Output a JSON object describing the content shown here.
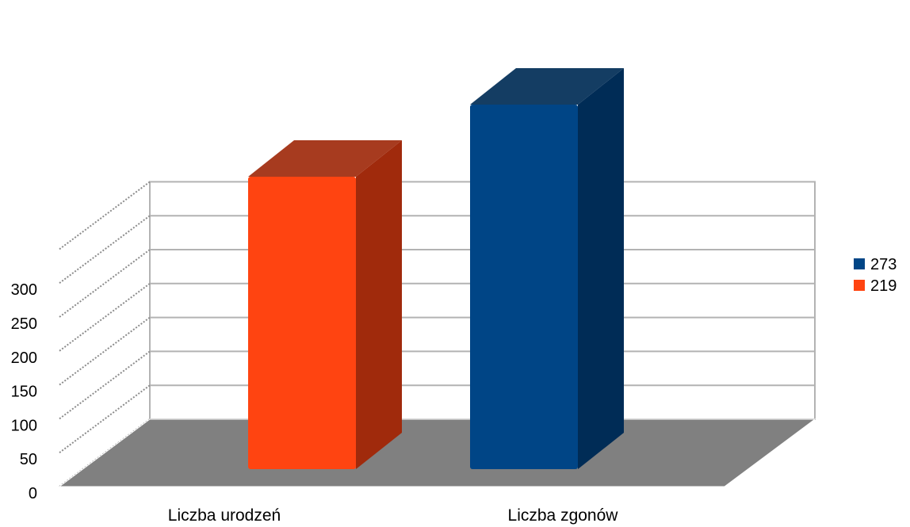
{
  "chart_data": {
    "type": "bar",
    "style": "3d",
    "categories": [
      "Liczba urodzeń",
      "Liczba zgonów"
    ],
    "values": [
      219,
      273
    ],
    "bar_colors": [
      "#ff4411",
      "#004586"
    ],
    "bar_side_colors": [
      "#a02a0c",
      "#002c56"
    ],
    "legend": [
      {
        "label": "273",
        "color": "#004586"
      },
      {
        "label": "219",
        "color": "#ff4411"
      }
    ],
    "legend_position": "right",
    "ylim": [
      0,
      300
    ],
    "yticks": [
      "0",
      "50",
      "100",
      "150",
      "200",
      "250",
      "300"
    ],
    "grid": true,
    "floor_color": "#808080",
    "title": "",
    "xlabel": "",
    "ylabel": ""
  }
}
